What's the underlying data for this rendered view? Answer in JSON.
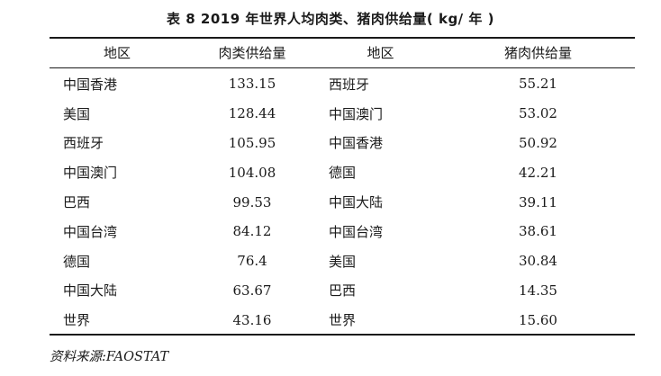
{
  "caption": "表 8   2019 年世界人均肉类、猪肉供给量( kg/ 年 )",
  "headers": {
    "region1": "地区",
    "meat_supply": "肉类供给量",
    "region2": "地区",
    "pork_supply": "猪肉供给量"
  },
  "rows": [
    {
      "region1": "中国香港",
      "meat": "133.15",
      "region2": "西班牙",
      "pork": "55.21"
    },
    {
      "region1": "美国",
      "meat": "128.44",
      "region2": "中国澳门",
      "pork": "53.02"
    },
    {
      "region1": "西班牙",
      "meat": "105.95",
      "region2": "中国香港",
      "pork": "50.92"
    },
    {
      "region1": "中国澳门",
      "meat": "104.08",
      "region2": "德国",
      "pork": "42.21"
    },
    {
      "region1": "巴西",
      "meat": "99.53",
      "region2": "中国大陆",
      "pork": "39.11"
    },
    {
      "region1": "中国台湾",
      "meat": "84.12",
      "region2": "中国台湾",
      "pork": "38.61"
    },
    {
      "region1": "德国",
      "meat": "76.4",
      "region2": "美国",
      "pork": "30.84"
    },
    {
      "region1": "中国大陆",
      "meat": "63.67",
      "region2": "巴西",
      "pork": "14.35"
    },
    {
      "region1": "世界",
      "meat": "43.16",
      "region2": "世界",
      "pork": "15.60"
    }
  ],
  "source": "资料来源:FAOSTAT"
}
